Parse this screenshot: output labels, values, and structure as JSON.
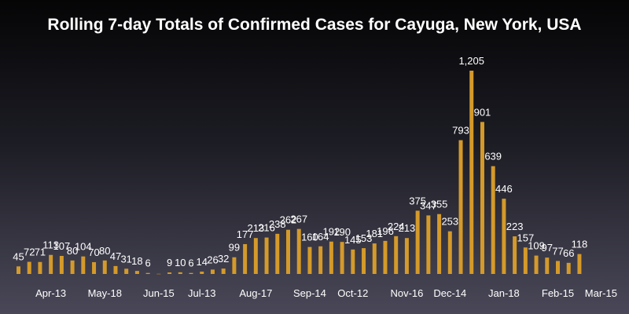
{
  "chart_data": {
    "type": "bar",
    "title": "Rolling 7-day Totals of Confirmed Cases for Cayuga, New York, USA",
    "xlabel": "",
    "ylabel": "",
    "bar_color": "#d49a2a",
    "values": [
      45,
      72,
      71,
      113,
      107,
      80,
      104,
      70,
      80,
      47,
      31,
      18,
      6,
      1,
      9,
      10,
      6,
      14,
      26,
      32,
      99,
      177,
      213,
      216,
      238,
      262,
      267,
      160,
      164,
      192,
      190,
      145,
      153,
      181,
      196,
      224,
      213,
      375,
      347,
      355,
      253,
      793,
      1205,
      901,
      639,
      446,
      223,
      157,
      109,
      97,
      77,
      66,
      118
    ],
    "value_labels": [
      "45",
      "72",
      "71",
      "113",
      "107",
      "80",
      "104",
      "70",
      "80",
      "47",
      "31",
      "18",
      "6",
      "1",
      "9",
      "10",
      "6",
      "14",
      "26",
      "32",
      "99",
      "177",
      "213",
      "216",
      "238",
      "262",
      "267",
      "160",
      "164",
      "192",
      "190",
      "145",
      "153",
      "181",
      "196",
      "224",
      "213",
      "375",
      "347",
      "355",
      "253",
      "793",
      "1,205",
      "901",
      "639",
      "446",
      "223",
      "157",
      "109",
      "97",
      "77",
      "66",
      "118"
    ],
    "label_visible": [
      true,
      true,
      true,
      true,
      true,
      true,
      true,
      true,
      true,
      true,
      true,
      true,
      true,
      false,
      true,
      true,
      true,
      true,
      true,
      true,
      true,
      true,
      true,
      true,
      true,
      true,
      true,
      true,
      true,
      true,
      true,
      true,
      true,
      true,
      true,
      true,
      true,
      true,
      true,
      true,
      true,
      true,
      true,
      true,
      true,
      true,
      true,
      true,
      true,
      true,
      true,
      true,
      true
    ],
    "x_ticks": [
      {
        "index": 3,
        "label": "Apr-13"
      },
      {
        "index": 8,
        "label": "May-18"
      },
      {
        "index": 13,
        "label": "Jun-15"
      },
      {
        "index": 17,
        "label": "Jul-13"
      },
      {
        "index": 22,
        "label": "Aug-17"
      },
      {
        "index": 27,
        "label": "Sep-14"
      },
      {
        "index": 31,
        "label": "Oct-12"
      },
      {
        "index": 36,
        "label": "Nov-16"
      },
      {
        "index": 40,
        "label": "Dec-14"
      },
      {
        "index": 45,
        "label": "Jan-18"
      },
      {
        "index": 50,
        "label": "Feb-15"
      },
      {
        "index": 54,
        "label": "Mar-15"
      }
    ],
    "ylim": [
      0,
      1300
    ],
    "grid": false,
    "legend": "none"
  }
}
